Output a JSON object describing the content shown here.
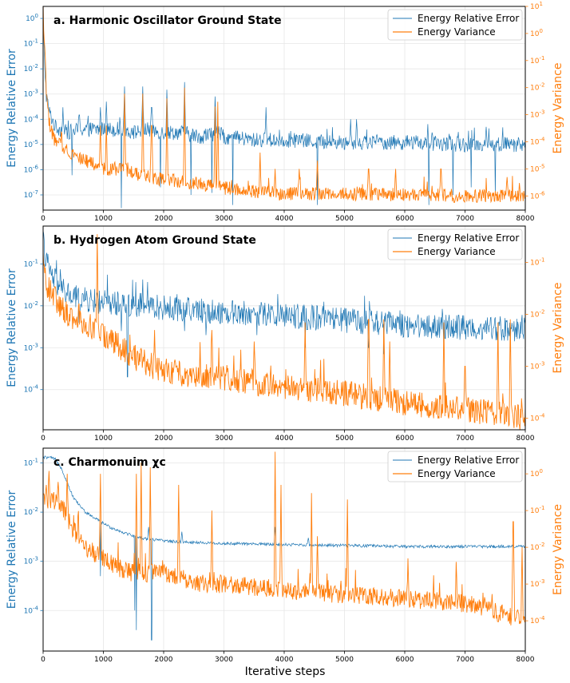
{
  "colors": {
    "error": "#1f77b4",
    "variance": "#ff7f0e",
    "grid": "#e6e6e6",
    "frame": "#000000"
  },
  "xlabel": "Iterative steps",
  "chart_data": [
    {
      "type": "line",
      "title": "a. Harmonic Oscillator Ground State",
      "x_range": [
        0,
        8000
      ],
      "x_ticks": [
        0,
        1000,
        2000,
        3000,
        4000,
        5000,
        6000,
        7000,
        8000
      ],
      "x_tick_labels": [
        "0",
        "1000",
        "2000",
        "3000",
        "4000",
        "5000",
        "6000",
        "7000",
        "8000"
      ],
      "ylabel_left": "Energy Relative Error",
      "ylabel_right": "Energy Variance",
      "yscale": "log",
      "ylim_left": [
        2.5e-08,
        3
      ],
      "ylim_right": [
        3e-07,
        10
      ],
      "yticks_left": [
        "10^0",
        "10^-1",
        "10^-2",
        "10^-3",
        "10^-4",
        "10^-5",
        "10^-6",
        "10^-7"
      ],
      "yticks_right": [
        "10^1",
        "10^0",
        "10^-1",
        "10^-2",
        "10^-3",
        "10^-4",
        "10^-5",
        "10^-6"
      ],
      "legend": [
        "Energy Relative Error",
        "Energy Variance"
      ],
      "legend_position": "top-right",
      "series": [
        {
          "name": "Energy Relative Error",
          "axis": "left",
          "x": [
            0,
            50,
            100,
            200,
            400,
            600,
            900,
            1300,
            1500,
            1700,
            2000,
            2300,
            2600,
            2900,
            3000,
            3500,
            4000,
            5000,
            6000,
            7000,
            8000
          ],
          "values": [
            0.5,
            0.001,
            0.0002,
            5e-05,
            3e-05,
            4e-05,
            4e-05,
            4e-05,
            3e-05,
            4e-05,
            3e-05,
            3e-05,
            2e-05,
            3e-05,
            2e-05,
            1.5e-05,
            1.5e-05,
            1.2e-05,
            1.2e-05,
            1e-05,
            1e-05
          ],
          "spikes": [
            [
              950,
              0.0003
            ],
            [
              1050,
              0.0005
            ],
            [
              1350,
              0.002
            ],
            [
              1650,
              0.002
            ],
            [
              1800,
              0.0003
            ],
            [
              2050,
              0.0015
            ],
            [
              2350,
              0.003
            ],
            [
              2850,
              0.0008
            ],
            [
              330,
              0.0003
            ],
            [
              600,
              0.00015
            ],
            [
              3700,
              0.0003
            ],
            [
              5100,
              0.0001
            ],
            [
              5200,
              0.0001
            ],
            [
              6450,
              3e-05
            ],
            [
              7350,
              5e-05
            ]
          ],
          "dips": [
            [
              480,
              6e-07
            ],
            [
              1300,
              3e-08
            ],
            [
              1950,
              2e-07
            ],
            [
              2450,
              1e-07
            ],
            [
              2800,
              1.2e-07
            ],
            [
              3150,
              4e-08
            ],
            [
              4550,
              4e-08
            ],
            [
              6400,
              4e-08
            ],
            [
              6800,
              1e-07
            ],
            [
              7100,
              2e-07
            ],
            [
              7500,
              1e-07
            ]
          ]
        },
        {
          "name": "Energy Variance",
          "axis": "right",
          "x": [
            0,
            20,
            50,
            100,
            200,
            400,
            700,
            1000,
            1300,
            1600,
            2000,
            2500,
            3000,
            3500,
            4000,
            5000,
            6000,
            7000,
            8000
          ],
          "values": [
            3,
            0.5,
            0.01,
            0.0005,
            0.0001,
            5e-05,
            2e-05,
            1e-05,
            1e-05,
            6e-06,
            4e-06,
            3e-06,
            2e-06,
            1.5e-06,
            1.2e-06,
            1.2e-06,
            1.1e-06,
            1e-06,
            1e-06
          ],
          "spikes": [
            [
              950,
              0.0004
            ],
            [
              1050,
              0.0004
            ],
            [
              1350,
              0.006
            ],
            [
              1650,
              0.006
            ],
            [
              1800,
              0.0004
            ],
            [
              2050,
              0.004
            ],
            [
              2350,
              0.01
            ],
            [
              2850,
              0.002
            ],
            [
              2900,
              0.003
            ],
            [
              3600,
              4e-05
            ],
            [
              3850,
              1e-05
            ],
            [
              4250,
              1e-05
            ],
            [
              4550,
              2e-05
            ],
            [
              5400,
              1e-05
            ],
            [
              5850,
              1e-05
            ],
            [
              6600,
              1e-05
            ],
            [
              7700,
              5e-06
            ],
            [
              7900,
              3e-06
            ]
          ]
        }
      ]
    },
    {
      "type": "line",
      "title": "b. Hydrogen Atom Ground State",
      "x_range": [
        0,
        8000
      ],
      "x_ticks": [
        0,
        1000,
        2000,
        3000,
        4000,
        5000,
        6000,
        7000,
        8000
      ],
      "x_tick_labels": [
        "0",
        "1000",
        "2000",
        "3000",
        "4000",
        "5000",
        "6000",
        "7000",
        "8000"
      ],
      "ylabel_left": "Energy Relative Error",
      "ylabel_right": "Energy Variance",
      "yscale": "log",
      "ylim_left": [
        1.1e-05,
        0.8
      ],
      "ylim_right": [
        6e-05,
        0.5
      ],
      "yticks_left": [
        "10^-1",
        "10^-2",
        "10^-3",
        "10^-4"
      ],
      "yticks_right": [
        "10^-1",
        "10^-2",
        "10^-3",
        "10^-4"
      ],
      "legend": [
        "Energy Relative Error",
        "Energy Variance"
      ],
      "legend_position": "top-right",
      "series": [
        {
          "name": "Energy Relative Error",
          "axis": "left",
          "x": [
            0,
            50,
            150,
            300,
            500,
            800,
            1000,
            1500,
            2000,
            2500,
            3000,
            4000,
            5000,
            6000,
            7000,
            8000
          ],
          "values": [
            0.35,
            0.12,
            0.05,
            0.025,
            0.016,
            0.013,
            0.012,
            0.011,
            0.009,
            0.008,
            0.007,
            0.006,
            0.0045,
            0.0035,
            0.003,
            0.0028
          ],
          "spikes": [
            [
              900,
              0.02
            ]
          ],
          "dips": [
            [
              600,
              0.004
            ],
            [
              1300,
              0.0025
            ],
            [
              1400,
              0.0002
            ],
            [
              2350,
              0.0025
            ],
            [
              2700,
              0.002
            ],
            [
              3550,
              0.002
            ],
            [
              4350,
              0.001
            ],
            [
              5400,
              0.001
            ],
            [
              5650,
              0.0007
            ],
            [
              6650,
              0.001
            ],
            [
              7550,
              0.0015
            ],
            [
              7750,
              0.0008
            ]
          ]
        },
        {
          "name": "Energy Variance",
          "axis": "right",
          "x": [
            0,
            50,
            200,
            400,
            600,
            800,
            1000,
            1500,
            2000,
            3000,
            4000,
            5000,
            6000,
            7000,
            8000
          ],
          "values": [
            0.12,
            0.04,
            0.02,
            0.01,
            0.008,
            0.006,
            0.004,
            0.0015,
            0.0008,
            0.0006,
            0.0004,
            0.0003,
            0.0002,
            0.00015,
            0.0001
          ],
          "spikes": [
            [
              900,
              0.35
            ],
            [
              1850,
              0.005
            ],
            [
              2800,
              0.005
            ],
            [
              3500,
              0.003
            ],
            [
              4350,
              0.007
            ],
            [
              5400,
              0.008
            ],
            [
              5650,
              0.008
            ],
            [
              5750,
              0.003
            ],
            [
              6650,
              0.007
            ],
            [
              7000,
              0.001
            ],
            [
              7550,
              0.007
            ],
            [
              7750,
              0.008
            ]
          ]
        }
      ]
    },
    {
      "type": "line",
      "title": "c. Charmonuim χc",
      "x_range": [
        0,
        8000
      ],
      "x_ticks": [
        0,
        1000,
        2000,
        3000,
        4000,
        5000,
        6000,
        7000,
        8000
      ],
      "x_tick_labels": [
        "0",
        "1000",
        "2000",
        "3000",
        "4000",
        "5000",
        "6000",
        "7000",
        "8000"
      ],
      "ylabel_left": "Energy Relative Error",
      "ylabel_right": "Energy Variance",
      "yscale": "log",
      "ylim_left": [
        1.5e-05,
        0.2
      ],
      "ylim_right": [
        1.5e-05,
        5
      ],
      "yticks_left": [
        "10^-1",
        "10^-2",
        "10^-3",
        "10^-4"
      ],
      "yticks_right": [
        "10^0",
        "10^-1",
        "10^-2",
        "10^-3",
        "10^-4"
      ],
      "legend": [
        "Energy Relative Error",
        "Energy Variance"
      ],
      "legend_position": "top-right",
      "series": [
        {
          "name": "Energy Relative Error",
          "axis": "left",
          "x": [
            0,
            100,
            200,
            300,
            400,
            500,
            700,
            900,
            1100,
            1300,
            1600,
            1900,
            2200,
            2600,
            3000,
            4000,
            5000,
            6000,
            7000,
            8000
          ],
          "values": [
            0.13,
            0.13,
            0.12,
            0.08,
            0.04,
            0.02,
            0.01,
            0.007,
            0.005,
            0.004,
            0.003,
            0.0027,
            0.0025,
            0.0024,
            0.0023,
            0.0022,
            0.0021,
            0.002,
            0.002,
            0.002
          ],
          "spikes": [
            [
              1750,
              0.005
            ],
            [
              2300,
              0.004
            ],
            [
              3850,
              0.005
            ],
            [
              4400,
              0.003
            ]
          ],
          "dips": [
            [
              950,
              0.0005
            ],
            [
              1520,
              0.0001
            ],
            [
              1550,
              4e-05
            ],
            [
              1800,
              2.5e-05
            ]
          ]
        },
        {
          "name": "Energy Variance",
          "axis": "right",
          "x": [
            0,
            150,
            300,
            500,
            700,
            1000,
            1200,
            1500,
            2000,
            2500,
            3000,
            4000,
            5000,
            6000,
            7000,
            8000
          ],
          "values": [
            0.2,
            0.2,
            0.15,
            0.03,
            0.01,
            0.005,
            0.003,
            0.002,
            0.002,
            0.001,
            0.001,
            0.0007,
            0.0005,
            0.0004,
            0.0003,
            0.0001
          ],
          "spikes": [
            [
              50,
              0.5
            ],
            [
              100,
              1.2
            ],
            [
              250,
              0.6
            ],
            [
              400,
              1.0
            ],
            [
              950,
              1.0
            ],
            [
              1550,
              1.0
            ],
            [
              1630,
              2.0
            ],
            [
              1780,
              1.5
            ],
            [
              2250,
              0.5
            ],
            [
              2800,
              0.1
            ],
            [
              3850,
              4.0
            ],
            [
              3950,
              0.5
            ],
            [
              4450,
              0.3
            ],
            [
              4550,
              0.02
            ],
            [
              5050,
              0.2
            ],
            [
              6050,
              0.005
            ],
            [
              6850,
              0.004
            ],
            [
              7800,
              0.05
            ],
            [
              7950,
              0.01
            ]
          ]
        }
      ]
    }
  ]
}
